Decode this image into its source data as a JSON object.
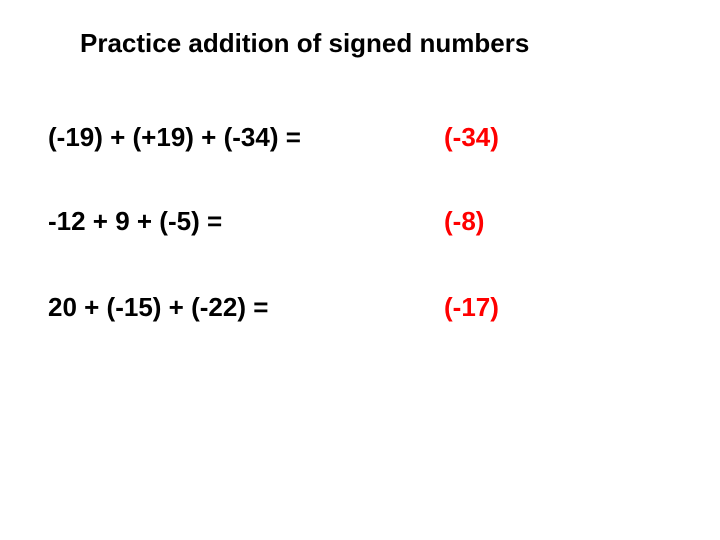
{
  "title": "Practice addition of signed numbers",
  "title_fontsize": 26,
  "title_color": "#000000",
  "background_color": "#ffffff",
  "font_family": "Verdana",
  "rows": [
    {
      "expression": "(-19) + (+19) + (-34) =",
      "answer": "(-34)"
    },
    {
      "expression": "-12 + 9 + (-5) =",
      "answer": "(-8)"
    },
    {
      "expression": "20 + (-15) + (-22) =",
      "answer": "(-17)"
    }
  ],
  "expression_color": "#000000",
  "answer_color": "#ff0000",
  "row_fontsize": 26
}
